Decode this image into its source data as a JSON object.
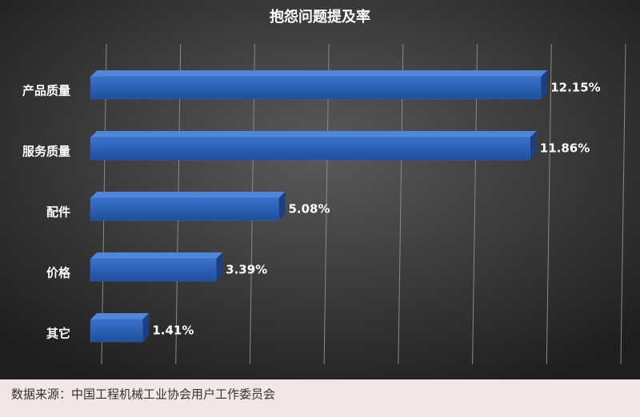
{
  "chart_data": {
    "type": "bar",
    "orientation": "horizontal",
    "title": "抱怨问题提及率",
    "categories": [
      "产品质量",
      "服务质量",
      "配件",
      "价格",
      "其它"
    ],
    "values": [
      12.15,
      11.86,
      5.08,
      3.39,
      1.41
    ],
    "value_labels": [
      "12.15%",
      "11.86%",
      "5.08%",
      "3.39%",
      "1.41%"
    ],
    "color": "#2e62b8",
    "xlim": [
      0,
      14
    ],
    "xticks": [
      0,
      2,
      4,
      6,
      8,
      10,
      12,
      14
    ],
    "grid": true,
    "source": "数据来源：中国工程机械工业协会用户工作委员会"
  }
}
